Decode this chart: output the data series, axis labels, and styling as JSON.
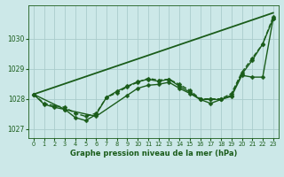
{
  "title": "Graphe pression niveau de la mer (hPa)",
  "background_color": "#cce8e8",
  "grid_color": "#aacccc",
  "line_color": "#1a5c1a",
  "xlim": [
    -0.5,
    23.5
  ],
  "ylim": [
    1026.7,
    1031.1
  ],
  "yticks": [
    1027,
    1028,
    1029,
    1030
  ],
  "xticks": [
    0,
    1,
    2,
    3,
    4,
    5,
    6,
    7,
    8,
    9,
    10,
    11,
    12,
    13,
    14,
    15,
    16,
    17,
    18,
    19,
    20,
    21,
    22,
    23
  ],
  "series": [
    {
      "x": [
        0,
        23
      ],
      "y": [
        1028.15,
        1030.85
      ],
      "marker": null,
      "markersize": 0,
      "linewidth": 1.3,
      "linestyle": "-"
    },
    {
      "x": [
        0,
        1,
        2,
        3,
        4,
        5,
        6,
        7,
        8,
        9,
        10,
        11,
        12,
        13,
        14,
        15,
        16,
        17,
        18,
        19,
        20,
        21,
        22,
        23
      ],
      "y": [
        1028.15,
        1027.85,
        1027.77,
        1027.72,
        1027.52,
        1027.42,
        1027.52,
        1028.05,
        1028.2,
        1028.4,
        1028.55,
        1028.68,
        1028.62,
        1028.65,
        1028.48,
        1028.28,
        1028.0,
        1028.0,
        1028.0,
        1028.18,
        1028.88,
        1029.35,
        1029.82,
        1030.72
      ],
      "marker": "D",
      "markersize": 2.5,
      "linewidth": 1.0,
      "linestyle": "--"
    },
    {
      "x": [
        0,
        1,
        2,
        3,
        4,
        5,
        6,
        7,
        8,
        9,
        10,
        11,
        12,
        13,
        14,
        15,
        16,
        17,
        18,
        19,
        20,
        21,
        22,
        23
      ],
      "y": [
        1028.15,
        1027.82,
        1027.72,
        1027.65,
        1027.38,
        1027.28,
        1027.48,
        1028.05,
        1028.25,
        1028.42,
        1028.57,
        1028.65,
        1028.58,
        1028.65,
        1028.42,
        1028.22,
        1027.98,
        1027.98,
        1027.98,
        1028.12,
        1028.82,
        1029.28,
        1029.82,
        1030.65
      ],
      "marker": "D",
      "markersize": 2.5,
      "linewidth": 1.0,
      "linestyle": "-"
    },
    {
      "x": [
        0,
        3,
        6,
        9,
        10,
        11,
        12,
        13,
        14,
        15,
        16,
        17,
        18,
        19,
        20,
        21,
        22,
        23
      ],
      "y": [
        1028.15,
        1027.65,
        1027.42,
        1028.12,
        1028.35,
        1028.45,
        1028.48,
        1028.55,
        1028.35,
        1028.18,
        1027.98,
        1027.85,
        1027.98,
        1028.08,
        1028.78,
        1028.72,
        1028.72,
        1030.65
      ],
      "marker": "D",
      "markersize": 2.5,
      "linewidth": 1.0,
      "linestyle": "-"
    }
  ]
}
